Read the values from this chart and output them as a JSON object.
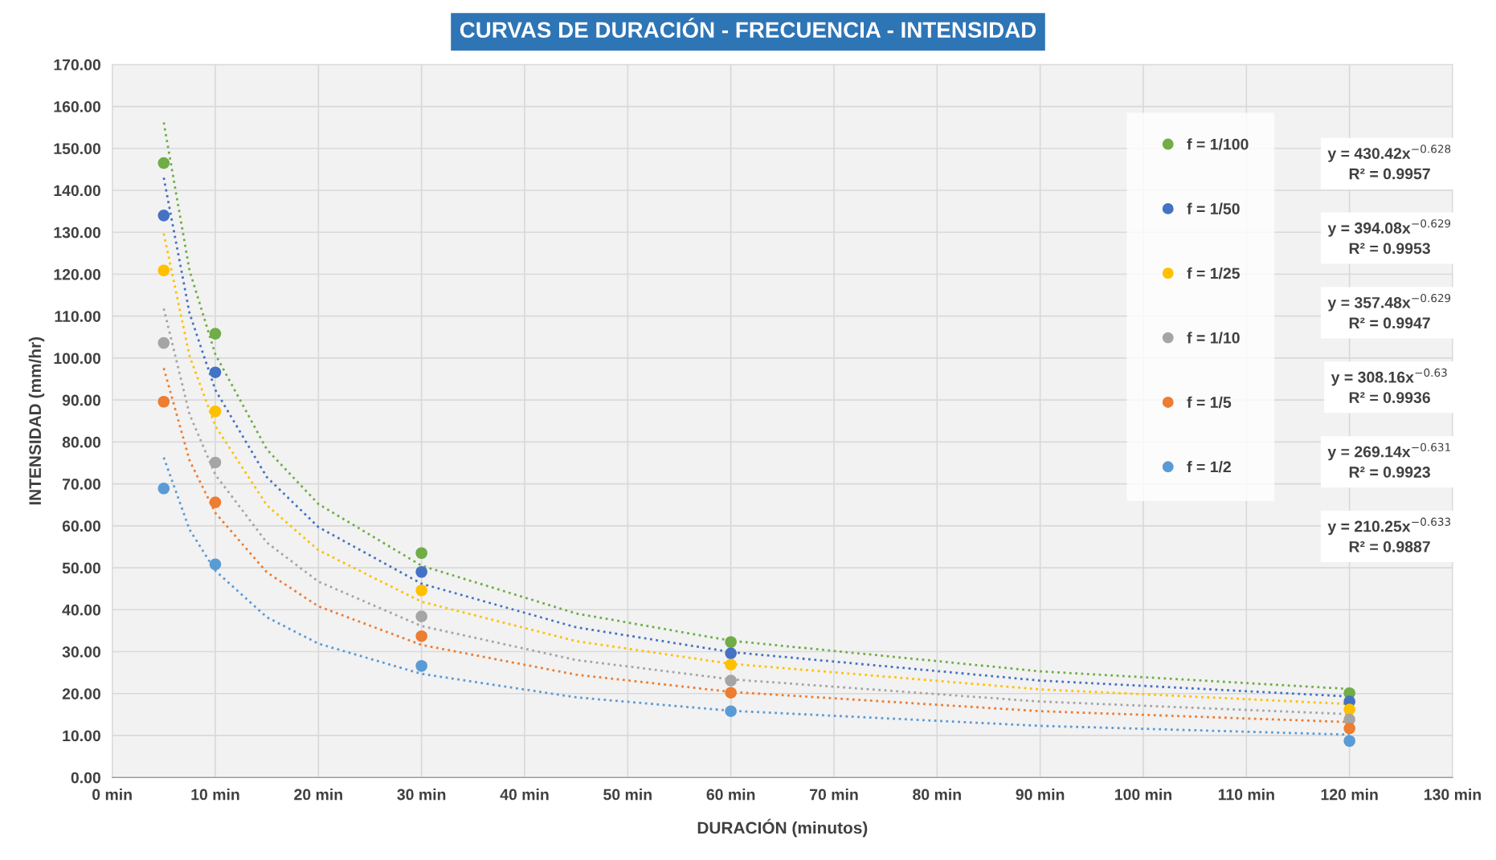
{
  "chart_data": {
    "type": "scatter",
    "title": "CURVAS DE DURACIÓN - FRECUENCIA - INTENSIDAD",
    "xlabel": "DURACIÓN (minutos)",
    "ylabel": "INTENSIDAD (mm/hr)",
    "x": [
      5,
      10,
      30,
      60,
      120
    ],
    "series": [
      {
        "name": "f = 1/100",
        "color": "#70ad47",
        "values": [
          146.5,
          105.8,
          53.5,
          32.3,
          20.1
        ]
      },
      {
        "name": "f = 1/50",
        "color": "#4472c4",
        "values": [
          134.0,
          96.6,
          49.0,
          29.6,
          18.1
        ]
      },
      {
        "name": "f = 1/25",
        "color": "#ffc000",
        "values": [
          120.9,
          87.3,
          44.6,
          26.9,
          16.2
        ]
      },
      {
        "name": "f = 1/10",
        "color": "#a5a5a5",
        "values": [
          103.6,
          75.1,
          38.4,
          23.1,
          13.8
        ]
      },
      {
        "name": "f = 1/5",
        "color": "#ed7d31",
        "values": [
          89.6,
          65.6,
          33.7,
          20.2,
          11.7
        ]
      },
      {
        "name": "f = 1/2",
        "color": "#5b9bd5",
        "values": [
          68.9,
          50.8,
          26.6,
          15.8,
          8.7
        ]
      },
      {
        "type": "line",
        "line_style": "dotted",
        "marker": "none",
        "color": "#70ad47",
        "x": [
          5,
          7.5,
          10,
          15,
          20,
          30,
          45,
          60,
          90,
          120
        ],
        "values": [
          156.2,
          120.9,
          100.9,
          78.2,
          65.2,
          50.5,
          39.1,
          32.6,
          25.3,
          21.1
        ]
      },
      {
        "type": "line",
        "line_style": "dotted",
        "marker": "none",
        "color": "#4472c4",
        "x": [
          5,
          7.5,
          10,
          15,
          20,
          30,
          45,
          60,
          90,
          120
        ],
        "values": [
          143.0,
          110.7,
          92.4,
          71.6,
          59.7,
          46.2,
          35.8,
          29.9,
          23.1,
          19.3
        ]
      },
      {
        "type": "line",
        "line_style": "dotted",
        "marker": "none",
        "color": "#ffc000",
        "x": [
          5,
          7.5,
          10,
          15,
          20,
          30,
          45,
          60,
          90,
          120
        ],
        "values": [
          129.7,
          100.5,
          83.8,
          64.9,
          54.2,
          41.9,
          32.5,
          27.1,
          21.0,
          17.5
        ]
      },
      {
        "type": "line",
        "line_style": "dotted",
        "marker": "none",
        "color": "#a5a5a5",
        "x": [
          5,
          7.5,
          10,
          15,
          20,
          30,
          45,
          60,
          90,
          120
        ],
        "values": [
          111.8,
          86.6,
          72.2,
          56.0,
          46.7,
          36.1,
          28.0,
          23.4,
          18.1,
          15.1
        ]
      },
      {
        "type": "line",
        "line_style": "dotted",
        "marker": "none",
        "color": "#ed7d31",
        "x": [
          5,
          7.5,
          10,
          15,
          20,
          30,
          45,
          60,
          90,
          120
        ],
        "values": [
          97.6,
          75.6,
          63.1,
          48.9,
          40.8,
          31.6,
          24.5,
          20.4,
          15.8,
          13.2
        ]
      },
      {
        "type": "line",
        "line_style": "dotted",
        "marker": "none",
        "color": "#5b9bd5",
        "x": [
          5,
          7.5,
          10,
          15,
          20,
          30,
          45,
          60,
          90,
          120
        ],
        "values": [
          76.3,
          59.1,
          49.3,
          38.2,
          31.9,
          24.7,
          19.1,
          15.9,
          12.3,
          10.2
        ]
      }
    ],
    "xlim": [
      0,
      130
    ],
    "xticks": [
      {
        "value": 0,
        "label": "0 min"
      },
      {
        "value": 10,
        "label": "10 min"
      },
      {
        "value": 20,
        "label": "20 min"
      },
      {
        "value": 30,
        "label": "30 min"
      },
      {
        "value": 40,
        "label": "40 min"
      },
      {
        "value": 50,
        "label": "50 min"
      },
      {
        "value": 60,
        "label": "60 min"
      },
      {
        "value": 70,
        "label": "70 min"
      },
      {
        "value": 80,
        "label": "80 min"
      },
      {
        "value": 90,
        "label": "90 min"
      },
      {
        "value": 100,
        "label": "100 min"
      },
      {
        "value": 110,
        "label": "110 min"
      },
      {
        "value": 120,
        "label": "120 min"
      },
      {
        "value": 130,
        "label": "130 min"
      }
    ],
    "ylim": [
      0,
      170
    ],
    "yticks": [
      {
        "value": 0,
        "label": "0.00"
      },
      {
        "value": 10,
        "label": "10.00"
      },
      {
        "value": 20,
        "label": "20.00"
      },
      {
        "value": 30,
        "label": "30.00"
      },
      {
        "value": 40,
        "label": "40.00"
      },
      {
        "value": 50,
        "label": "50.00"
      },
      {
        "value": 60,
        "label": "60.00"
      },
      {
        "value": 70,
        "label": "70.00"
      },
      {
        "value": 80,
        "label": "80.00"
      },
      {
        "value": 90,
        "label": "90.00"
      },
      {
        "value": 100,
        "label": "100.00"
      },
      {
        "value": 110,
        "label": "110.00"
      },
      {
        "value": 120,
        "label": "120.00"
      },
      {
        "value": 130,
        "label": "130.00"
      },
      {
        "value": 140,
        "label": "140.00"
      },
      {
        "value": 150,
        "label": "150.00"
      },
      {
        "value": 160,
        "label": "160.00"
      },
      {
        "value": 170,
        "label": "170.00"
      }
    ],
    "grid": true,
    "legend": "right",
    "marker": "circle",
    "annotations": [
      "y = 430.42x$^{−0.628}$\nR² = 0.9957",
      "y = 394.08x$^{−0.629}$\nR² = 0.9953",
      "y = 357.48x$^{−0.629}$\nR² = 0.9947",
      "y = 308.16x$^{−0.63}$\nR² = 0.9936",
      "y = 269.14x$^{−0.631}$\nR² = 0.9923",
      "y = 210.25x$^{−0.633}$\nR² = 0.9887"
    ]
  }
}
